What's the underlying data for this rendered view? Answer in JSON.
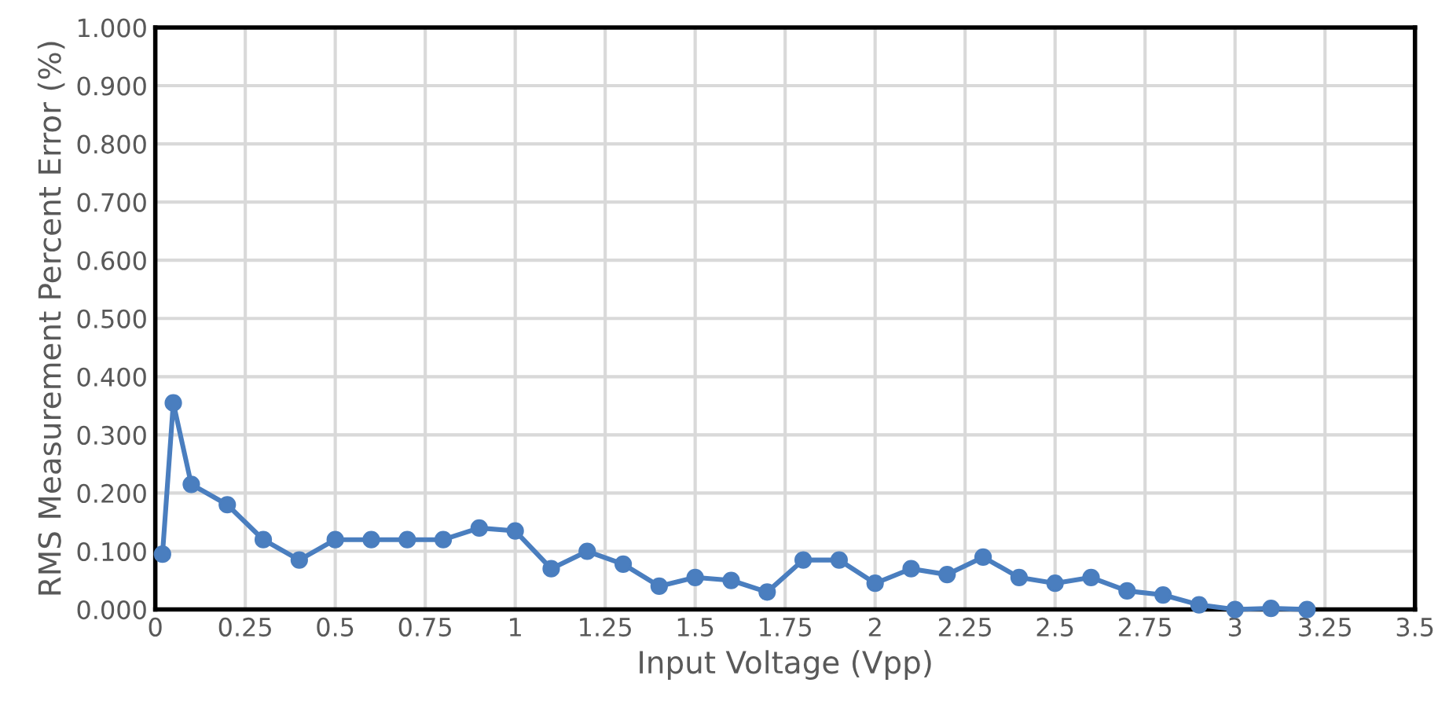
{
  "chart_data": {
    "type": "line",
    "xlabel": "Input Voltage (Vpp)",
    "ylabel": "RMS Measurement Percent Error (%)",
    "x": [
      0.02,
      0.05,
      0.1,
      0.2,
      0.3,
      0.4,
      0.5,
      0.6,
      0.7,
      0.8,
      0.9,
      1.0,
      1.1,
      1.2,
      1.3,
      1.4,
      1.5,
      1.6,
      1.7,
      1.8,
      1.9,
      2.0,
      2.1,
      2.2,
      2.3,
      2.4,
      2.5,
      2.6,
      2.7,
      2.8,
      2.9,
      3.0,
      3.1,
      3.2
    ],
    "series": [
      {
        "color": "#4a7ebf",
        "values": [
          0.095,
          0.355,
          0.215,
          0.18,
          0.12,
          0.085,
          0.12,
          0.12,
          0.12,
          0.12,
          0.14,
          0.135,
          0.07,
          0.1,
          0.078,
          0.04,
          0.055,
          0.05,
          0.03,
          0.085,
          0.085,
          0.045,
          0.07,
          0.06,
          0.09,
          0.055,
          0.045,
          0.055,
          0.032,
          0.025,
          0.008,
          0.0,
          0.002,
          0.0
        ]
      }
    ],
    "xlim": [
      0,
      3.5
    ],
    "xticks": [
      0,
      0.25,
      0.5,
      0.75,
      1,
      1.25,
      1.5,
      1.75,
      2,
      2.25,
      2.5,
      2.75,
      3,
      3.25,
      3.5
    ],
    "ylim": [
      0,
      1
    ],
    "yticks": [
      {
        "value": 0,
        "label": "0.000"
      },
      {
        "value": 0.1,
        "label": "0.100"
      },
      {
        "value": 0.2,
        "label": "0.200"
      },
      {
        "value": 0.3,
        "label": "0.300"
      },
      {
        "value": 0.4,
        "label": "0.400"
      },
      {
        "value": 0.5,
        "label": "0.500"
      },
      {
        "value": 0.6,
        "label": "0.600"
      },
      {
        "value": 0.7,
        "label": "0.700"
      },
      {
        "value": 0.8,
        "label": "0.800"
      },
      {
        "value": 0.9,
        "label": "0.900"
      },
      {
        "value": 1,
        "label": "1.000"
      }
    ],
    "grid": true,
    "marker": "circle",
    "line_style": "solid"
  }
}
